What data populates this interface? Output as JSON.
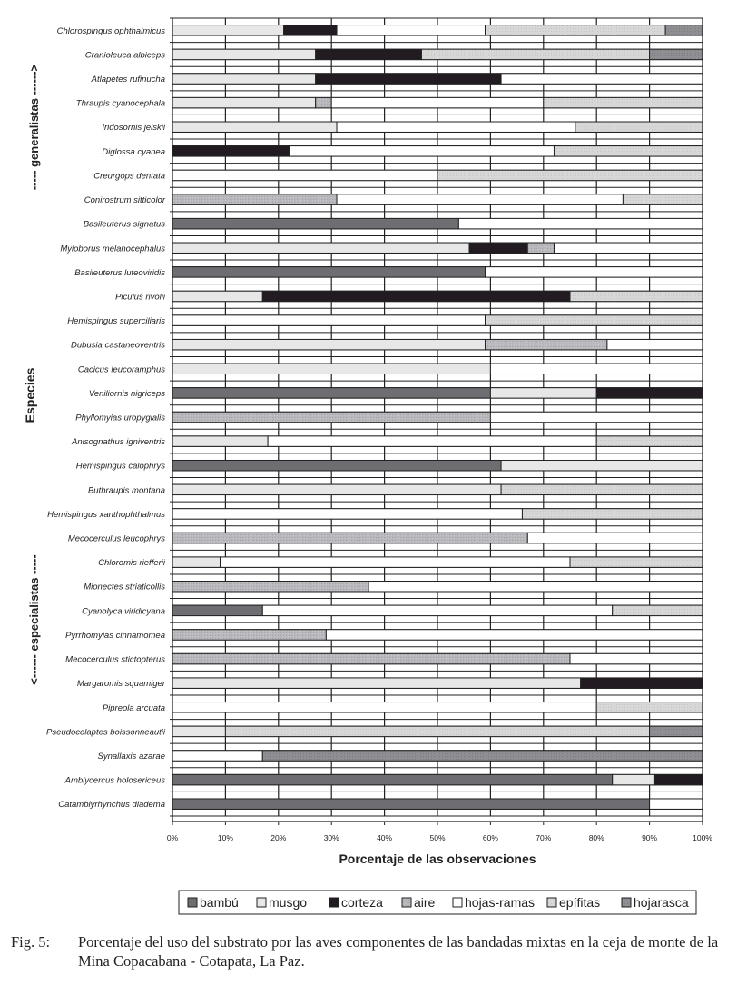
{
  "chart_data": {
    "type": "bar",
    "orientation": "horizontal",
    "stacked": "percent",
    "xlabel": "Porcentaje de las observaciones",
    "ylabel": "Especies",
    "xlim": [
      0,
      100
    ],
    "xticks": [
      "0%",
      "10%",
      "20%",
      "30%",
      "40%",
      "50%",
      "60%",
      "70%",
      "80%",
      "90%",
      "100%"
    ],
    "grid": true,
    "legend_position": "bottom",
    "group_labels": {
      "top": "----- generalistas ------>",
      "bottom": "<------ especialistas -----"
    },
    "legend": [
      "bambú",
      "musgo",
      "corteza",
      "aire",
      "hojas-ramas",
      "epífitas",
      "hojarasca"
    ],
    "colors": {
      "bambú": "#6e6e72",
      "musgo": "#e7e7e7",
      "corteza": "#231b22",
      "aire": "#b9b9bd",
      "hojas-ramas": "#ffffff",
      "epífitas": "#d7d7d7",
      "hojarasca": "#8f8f93"
    },
    "categories": [
      "Chlorospingus ophthalmicus",
      "Cranioleuca albiceps",
      "Atlapetes rufinucha",
      "Thraupis cyanocephala",
      "Iridosornis jelskii",
      "Diglossa cyanea",
      "Creurgops dentata",
      "Conirostrum sitticolor",
      "Basileuterus signatus",
      "Myioborus melanocephalus",
      "Basileuterus luteoviridis",
      "Piculus rivolii",
      "Hemispingus superciliaris",
      "Dubusia castaneoventris",
      "Cacicus leucoramphus",
      "Veniliornis nigriceps",
      "Phyllomyias uropygialis",
      "Anisognathus igniventris",
      "Hemispingus calophrys",
      "Buthraupis montana",
      "Hemispingus xanthophthalmus",
      "Mecocerculus leucophrys",
      "Chloromis riefferii",
      "Mionectes striaticollis",
      "Cyanolyca viridicyana",
      "Pyrrhomyias cinnamomea",
      "Mecocerculus stictopterus",
      "Margaromis squamiger",
      "Pipreola arcuata",
      "Pseudocolaptes boissonneautii",
      "Synallaxis azarae",
      "Amblycercus holosericeus",
      "Catamblyrhynchus diadema"
    ],
    "series": [
      {
        "name": "bambú",
        "values": [
          0,
          0,
          0,
          0,
          0,
          0,
          0,
          0,
          54,
          0,
          59,
          0,
          0,
          0,
          0,
          60,
          0,
          0,
          62,
          0,
          0,
          0,
          0,
          0,
          17,
          0,
          0,
          0,
          0,
          0,
          0,
          83,
          90
        ]
      },
      {
        "name": "musgo",
        "values": [
          21,
          27,
          27,
          27,
          31,
          0,
          0,
          0,
          0,
          56,
          0,
          17,
          0,
          59,
          60,
          20,
          0,
          18,
          38,
          62,
          0,
          0,
          9,
          0,
          0,
          0,
          0,
          77,
          0,
          10,
          0,
          8,
          0
        ]
      },
      {
        "name": "corteza",
        "values": [
          10,
          20,
          35,
          0,
          0,
          22,
          0,
          0,
          0,
          11,
          0,
          58,
          0,
          0,
          0,
          20,
          0,
          0,
          0,
          0,
          0,
          0,
          0,
          0,
          0,
          0,
          0,
          23,
          0,
          0,
          0,
          9,
          0
        ]
      },
      {
        "name": "aire",
        "values": [
          0,
          0,
          0,
          3,
          0,
          0,
          0,
          31,
          0,
          5,
          0,
          0,
          0,
          23,
          0,
          0,
          60,
          0,
          0,
          0,
          0,
          67,
          0,
          37,
          0,
          29,
          75,
          0,
          0,
          0,
          0,
          0,
          0
        ]
      },
      {
        "name": "hojas-ramas",
        "values": [
          28,
          0,
          38,
          40,
          45,
          50,
          50,
          54,
          46,
          28,
          41,
          0,
          59,
          18,
          40,
          0,
          40,
          62,
          0,
          0,
          66,
          33,
          66,
          63,
          66,
          71,
          25,
          0,
          80,
          0,
          17,
          0,
          10
        ]
      },
      {
        "name": "epífitas",
        "values": [
          34,
          43,
          0,
          30,
          24,
          28,
          50,
          15,
          0,
          0,
          0,
          25,
          41,
          0,
          0,
          0,
          0,
          20,
          0,
          38,
          34,
          0,
          25,
          0,
          17,
          0,
          0,
          0,
          20,
          80,
          0,
          0,
          0
        ]
      },
      {
        "name": "hojarasca",
        "values": [
          7,
          10,
          0,
          0,
          0,
          0,
          0,
          0,
          0,
          0,
          0,
          0,
          0,
          0,
          0,
          0,
          0,
          0,
          0,
          0,
          0,
          0,
          0,
          0,
          0,
          0,
          0,
          0,
          0,
          10,
          83,
          0,
          0
        ]
      }
    ]
  },
  "caption": {
    "label": "Fig. 5:",
    "text": "Porcentaje del uso del substrato por las aves componentes de las bandadas mixtas en la ceja de monte de la Mina Copacabana - Cotapata, La Paz."
  }
}
